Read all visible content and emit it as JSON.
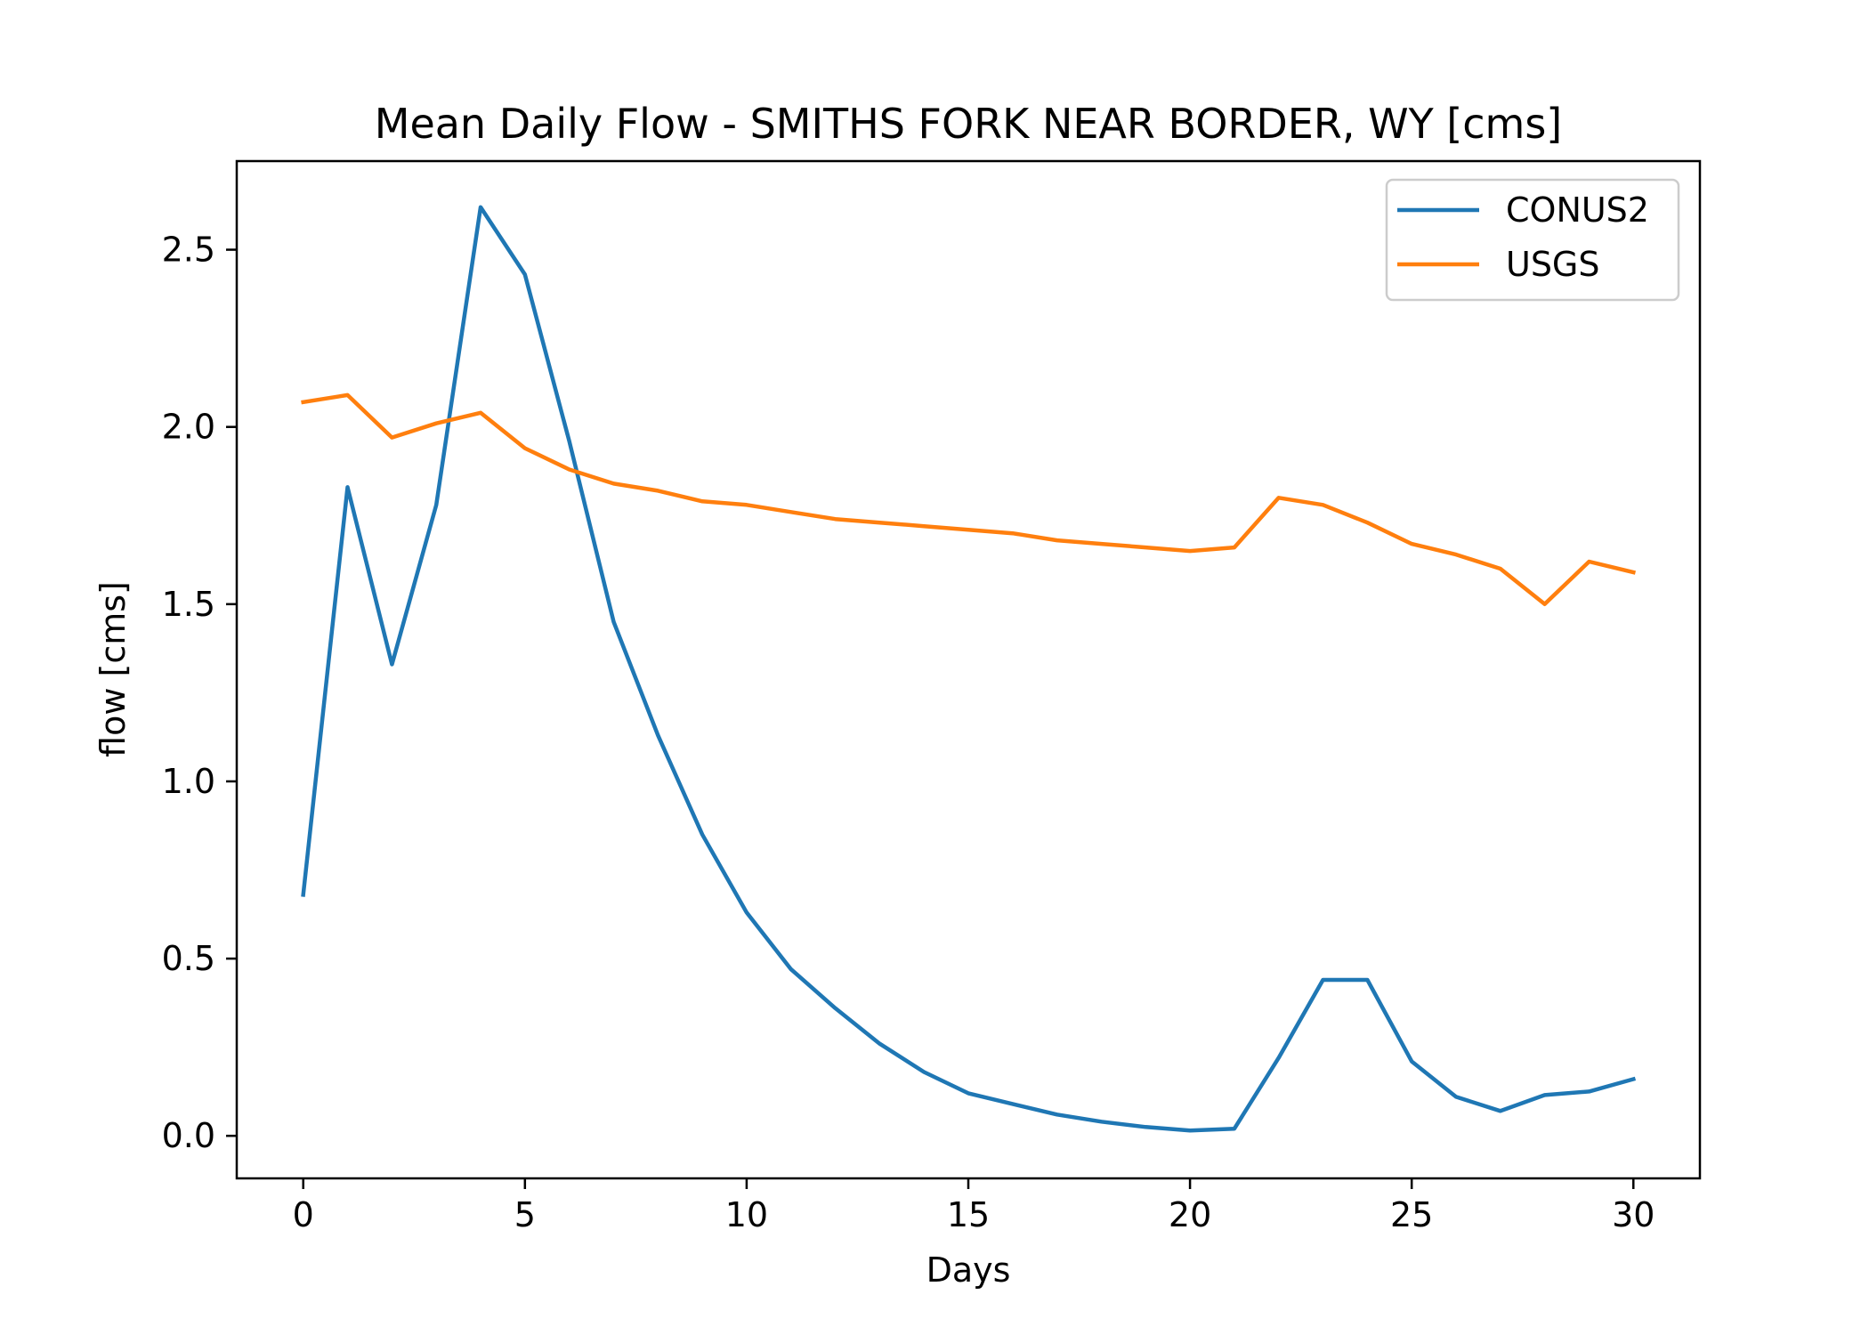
{
  "chart_data": {
    "type": "line",
    "title": "Mean Daily Flow - SMITHS FORK NEAR BORDER, WY [cms]",
    "xlabel": "Days",
    "ylabel": "flow [cms]",
    "xlim": [
      -1.5,
      31.5
    ],
    "ylim": [
      -0.12,
      2.75
    ],
    "xticks": [
      0,
      5,
      10,
      15,
      20,
      25,
      30
    ],
    "yticks": [
      0.0,
      0.5,
      1.0,
      1.5,
      2.0,
      2.5
    ],
    "xtick_labels": [
      "0",
      "5",
      "10",
      "15",
      "20",
      "25",
      "30"
    ],
    "ytick_labels": [
      "0.0",
      "0.5",
      "1.0",
      "1.5",
      "2.0",
      "2.5"
    ],
    "grid": false,
    "legend_position": "top-right",
    "x": [
      0,
      1,
      2,
      3,
      4,
      5,
      6,
      7,
      8,
      9,
      10,
      11,
      12,
      13,
      14,
      15,
      16,
      17,
      18,
      19,
      20,
      21,
      22,
      23,
      24,
      25,
      26,
      27,
      28,
      29,
      30
    ],
    "series": [
      {
        "name": "CONUS2",
        "color": "#1f77b4",
        "values": [
          0.68,
          1.83,
          1.33,
          1.78,
          2.62,
          2.43,
          1.96,
          1.45,
          1.13,
          0.85,
          0.63,
          0.47,
          0.36,
          0.26,
          0.18,
          0.12,
          0.09,
          0.06,
          0.04,
          0.025,
          0.015,
          0.02,
          0.22,
          0.44,
          0.44,
          0.21,
          0.11,
          0.07,
          0.115,
          0.125,
          0.16
        ]
      },
      {
        "name": "USGS",
        "color": "#ff7f0e",
        "values": [
          2.07,
          2.09,
          1.97,
          2.01,
          2.04,
          1.94,
          1.88,
          1.84,
          1.82,
          1.79,
          1.78,
          1.76,
          1.74,
          1.73,
          1.72,
          1.71,
          1.7,
          1.68,
          1.67,
          1.66,
          1.65,
          1.66,
          1.8,
          1.78,
          1.73,
          1.67,
          1.64,
          1.6,
          1.5,
          1.62,
          1.59
        ]
      }
    ]
  }
}
